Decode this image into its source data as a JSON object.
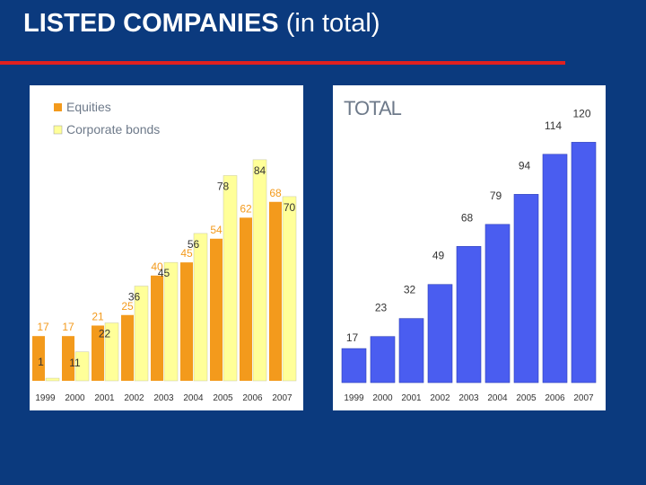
{
  "title": {
    "bold": "LISTED COMPANIES",
    "light": "(in total)"
  },
  "colors": {
    "background": "#0b3a7e",
    "rule": "#e02020",
    "equities": "#f39a1c",
    "bonds": "#ffff99",
    "total": "#4a5df0"
  },
  "chart_data": [
    {
      "type": "bar",
      "categories": [
        "1999",
        "2000",
        "2001",
        "2002",
        "2003",
        "2004",
        "2005",
        "2006",
        "2007"
      ],
      "series": [
        {
          "name": "Equities",
          "values": [
            17,
            17,
            21,
            25,
            40,
            45,
            54,
            62,
            68
          ]
        },
        {
          "name": "Corporate bonds",
          "values": [
            1,
            11,
            22,
            36,
            45,
            56,
            78,
            84,
            70
          ]
        }
      ],
      "legend": "top-left",
      "grid": false
    },
    {
      "type": "bar",
      "title": "TOTAL",
      "categories": [
        "1999",
        "2000",
        "2001",
        "2002",
        "2003",
        "2004",
        "2005",
        "2006",
        "2007"
      ],
      "series": [
        {
          "name": "",
          "values": [
            17,
            23,
            32,
            49,
            68,
            79,
            94,
            114,
            120
          ]
        }
      ],
      "grid": false
    }
  ]
}
